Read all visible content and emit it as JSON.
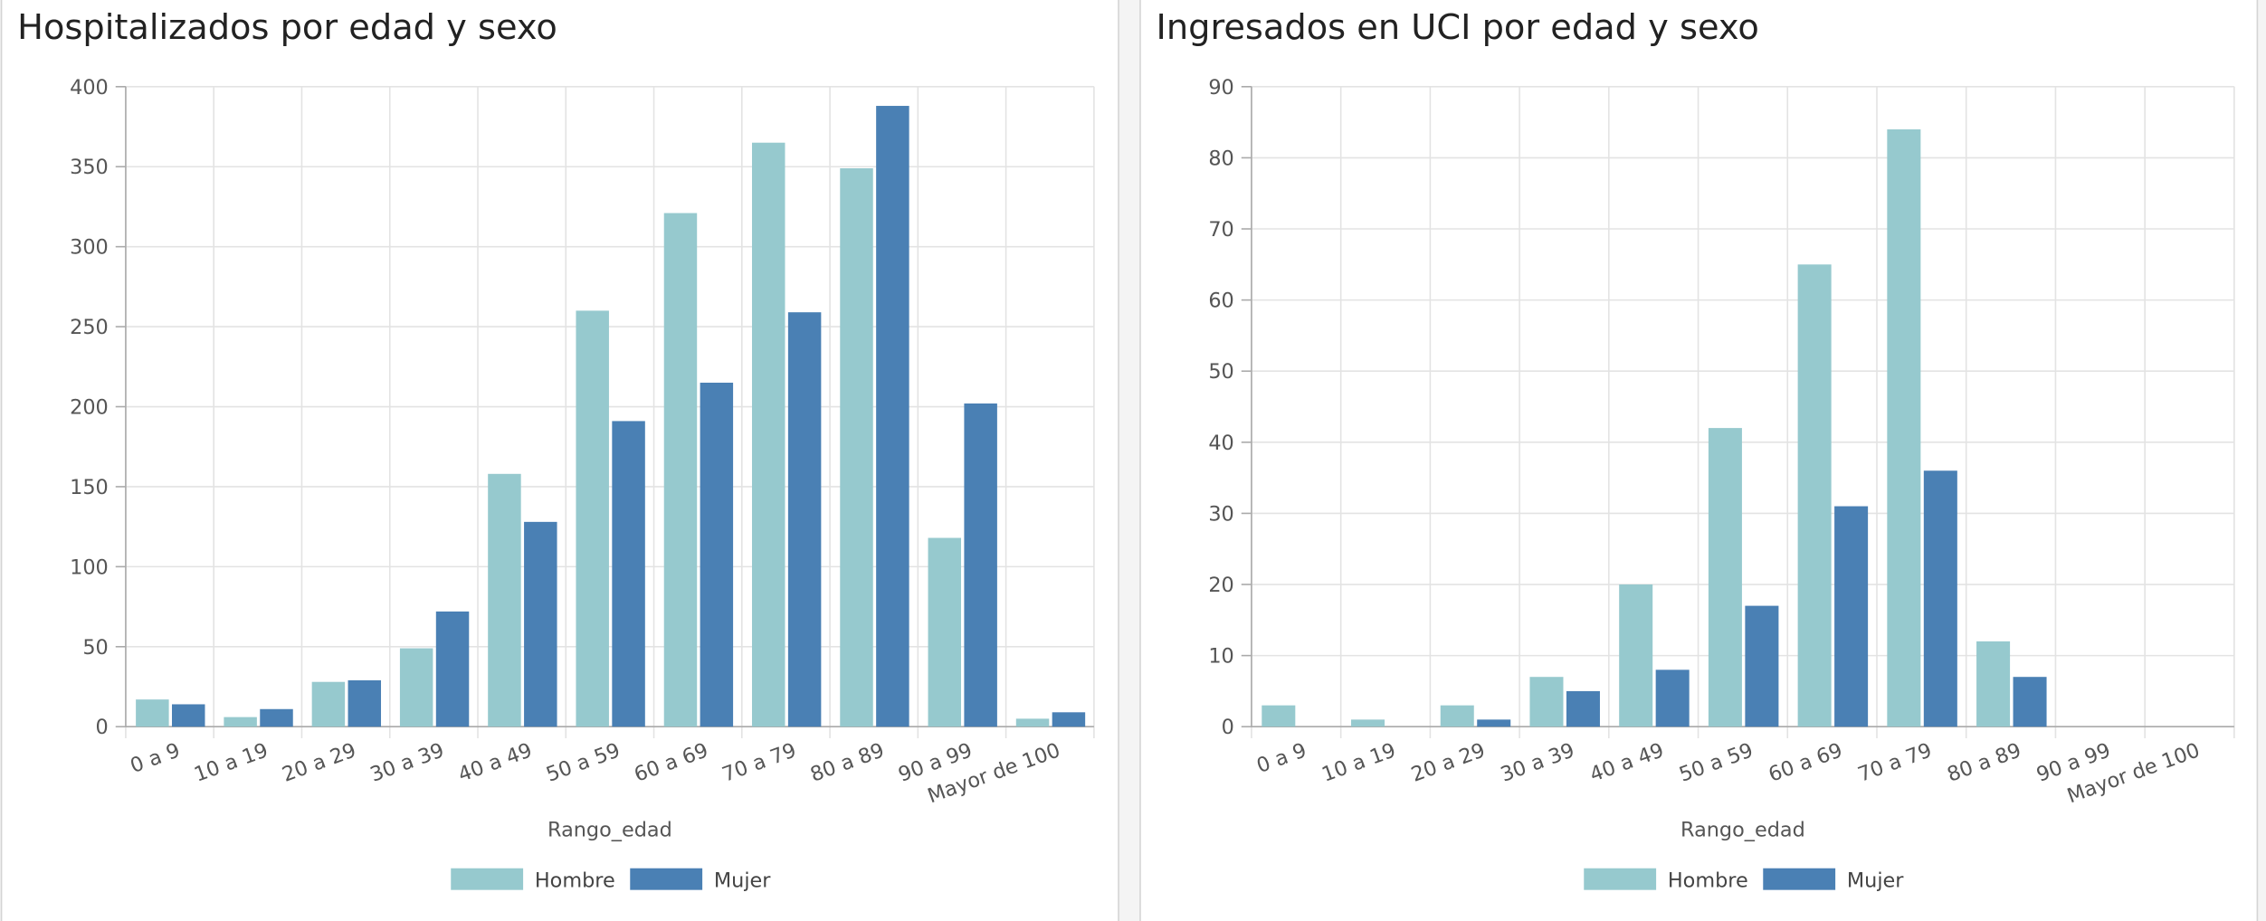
{
  "chart_data": [
    {
      "type": "bar",
      "title": "Hospitalizados por edad y sexo",
      "x_label": "Rango_edad",
      "categories": [
        "0 a 9",
        "10 a 19",
        "20 a 29",
        "30 a 39",
        "40 a 49",
        "50 a 59",
        "60 a 69",
        "70 a 79",
        "80 a 89",
        "90 a 99",
        "Mayor de 100"
      ],
      "series": [
        {
          "name": "Hombre",
          "color": "#96c9ce",
          "values": [
            17,
            6,
            28,
            49,
            158,
            260,
            321,
            365,
            349,
            118,
            5
          ]
        },
        {
          "name": "Mujer",
          "color": "#4a80b4",
          "values": [
            14,
            11,
            29,
            72,
            128,
            191,
            215,
            259,
            388,
            202,
            9
          ]
        }
      ],
      "ylim": [
        0,
        400
      ],
      "yticks": [
        0,
        50,
        100,
        150,
        200,
        250,
        300,
        350,
        400
      ],
      "grid": true,
      "legend": "bottom"
    },
    {
      "type": "bar",
      "title": "Ingresados en UCI por edad y sexo",
      "x_label": "Rango_edad",
      "categories": [
        "0 a 9",
        "10 a 19",
        "20 a 29",
        "30 a 39",
        "40 a 49",
        "50 a 59",
        "60 a 69",
        "70 a 79",
        "80 a 89",
        "90 a 99",
        "Mayor de 100"
      ],
      "series": [
        {
          "name": "Hombre",
          "color": "#96c9ce",
          "values": [
            3,
            1,
            3,
            7,
            20,
            42,
            65,
            84,
            12,
            0,
            0
          ]
        },
        {
          "name": "Mujer",
          "color": "#4a80b4",
          "values": [
            0,
            0,
            1,
            5,
            8,
            17,
            31,
            36,
            7,
            0,
            0
          ]
        }
      ],
      "ylim": [
        0,
        90
      ],
      "yticks": [
        0,
        10,
        20,
        30,
        40,
        50,
        60,
        70,
        80,
        90
      ],
      "grid": true,
      "legend": "bottom"
    }
  ]
}
